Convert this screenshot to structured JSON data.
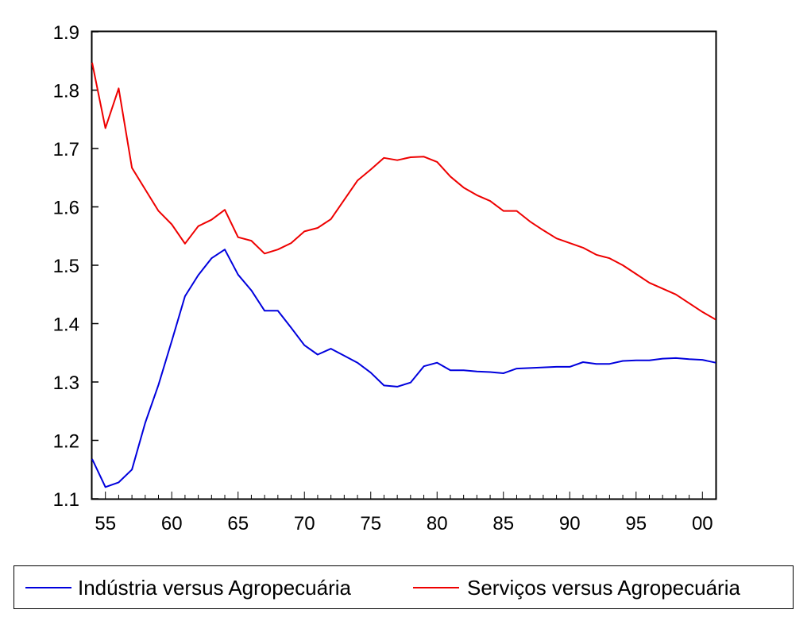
{
  "chart_data": {
    "type": "line",
    "title": "",
    "xlabel": "",
    "ylabel": "",
    "xlim": [
      1954,
      2001
    ],
    "ylim": [
      1.1,
      1.9
    ],
    "grid": false,
    "legend_position": "bottom",
    "y_ticks": [
      1.1,
      1.2,
      1.3,
      1.4,
      1.5,
      1.6,
      1.7,
      1.8,
      1.9
    ],
    "y_tick_labels": [
      "1.1",
      "1.2",
      "1.3",
      "1.4",
      "1.5",
      "1.6",
      "1.7",
      "1.8",
      "1.9"
    ],
    "x_ticks": [
      1955,
      1960,
      1965,
      1970,
      1975,
      1980,
      1985,
      1990,
      1995,
      2000
    ],
    "x_tick_labels": [
      "55",
      "60",
      "65",
      "70",
      "75",
      "80",
      "85",
      "90",
      "95",
      "00"
    ],
    "x": [
      1954,
      1955,
      1956,
      1957,
      1958,
      1959,
      1960,
      1961,
      1962,
      1963,
      1964,
      1965,
      1966,
      1967,
      1968,
      1969,
      1970,
      1971,
      1972,
      1973,
      1974,
      1975,
      1976,
      1977,
      1978,
      1979,
      1980,
      1981,
      1982,
      1983,
      1984,
      1985,
      1986,
      1987,
      1988,
      1989,
      1990,
      1991,
      1992,
      1993,
      1994,
      1995,
      1996,
      1997,
      1998,
      1999,
      2000,
      2001
    ],
    "series": [
      {
        "name": "Indústria versus Agropecuária",
        "color": "#0000dd",
        "values": [
          1.168,
          1.12,
          1.128,
          1.15,
          1.23,
          1.295,
          1.37,
          1.447,
          1.483,
          1.512,
          1.527,
          1.484,
          1.457,
          1.422,
          1.422,
          1.393,
          1.363,
          1.347,
          1.357,
          1.345,
          1.333,
          1.316,
          1.294,
          1.292,
          1.299,
          1.327,
          1.333,
          1.32,
          1.32,
          1.318,
          1.317,
          1.315,
          1.323,
          1.324,
          1.325,
          1.326,
          1.326,
          1.334,
          1.331,
          1.331,
          1.336,
          1.337,
          1.337,
          1.34,
          1.341,
          1.339,
          1.338,
          1.333
        ]
      },
      {
        "name": "Serviços versus Agropecuária",
        "color": "#ee0000",
        "values": [
          1.847,
          1.735,
          1.803,
          1.667,
          1.63,
          1.593,
          1.57,
          1.537,
          1.567,
          1.578,
          1.595,
          1.548,
          1.542,
          1.52,
          1.527,
          1.538,
          1.558,
          1.564,
          1.579,
          1.612,
          1.645,
          1.664,
          1.684,
          1.68,
          1.685,
          1.686,
          1.677,
          1.652,
          1.633,
          1.62,
          1.61,
          1.593,
          1.593,
          1.575,
          1.56,
          1.546,
          1.538,
          1.53,
          1.518,
          1.512,
          1.5,
          1.485,
          1.47,
          1.46,
          1.45,
          1.435,
          1.42,
          1.407
        ]
      }
    ]
  }
}
